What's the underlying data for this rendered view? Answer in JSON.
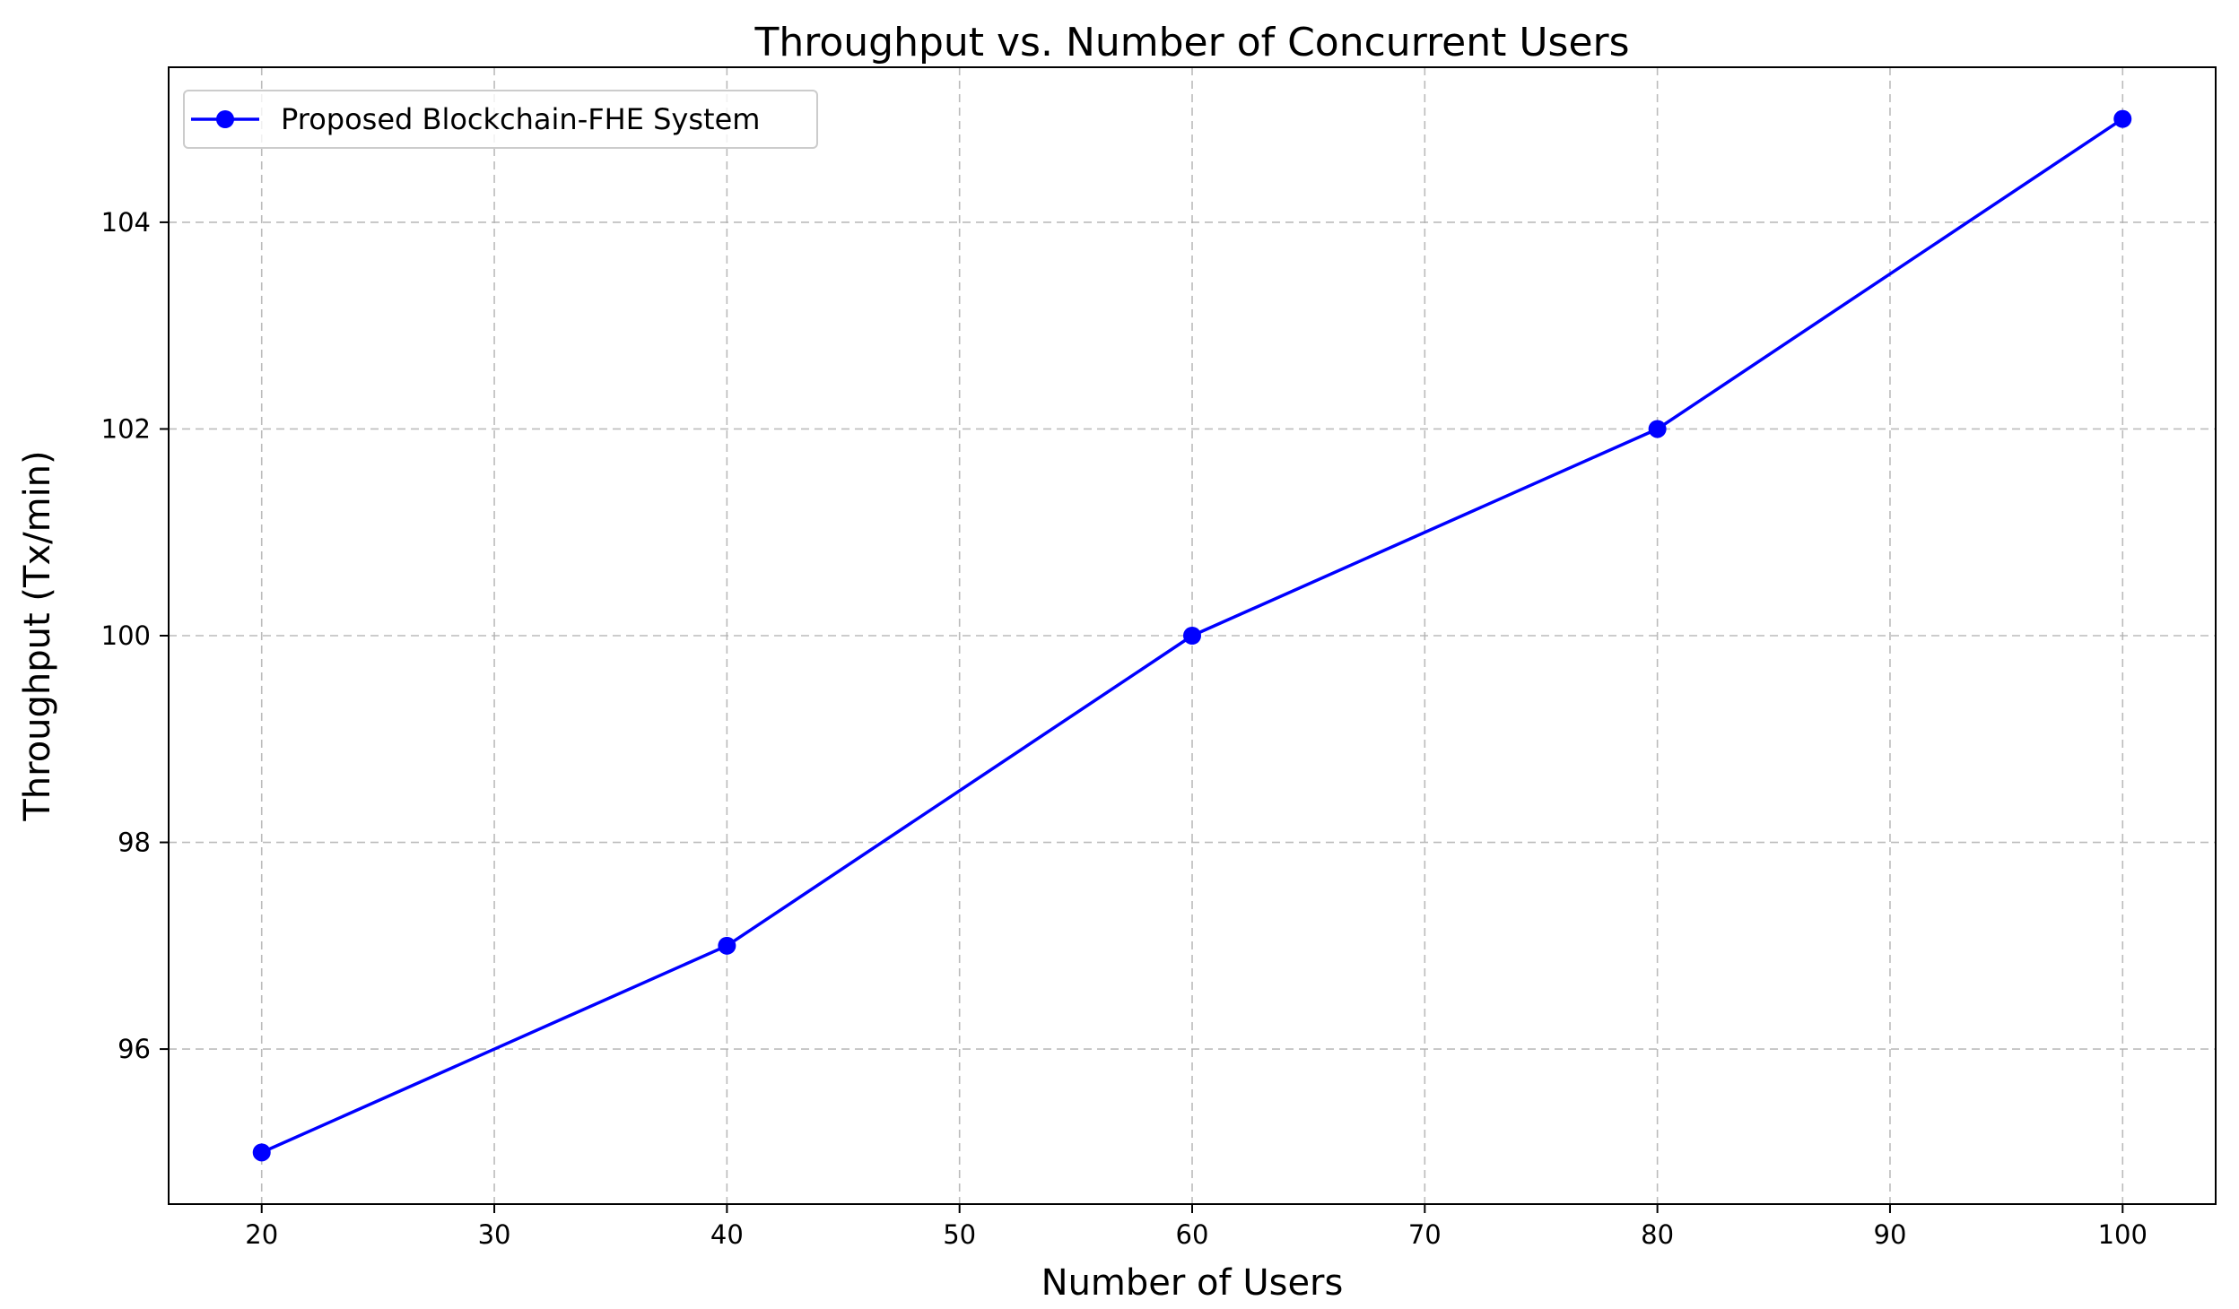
{
  "chart_data": {
    "type": "line",
    "title": "Throughput vs. Number of Concurrent Users",
    "xlabel": "Number of Users",
    "ylabel": "Throughput (Tx/min)",
    "x": [
      20,
      40,
      60,
      80,
      100
    ],
    "series": [
      {
        "name": "Proposed Blockchain-FHE System",
        "values": [
          95,
          97,
          100,
          102,
          105
        ],
        "color": "#0000ff",
        "marker": "circle"
      }
    ],
    "xlim": [
      16,
      104
    ],
    "ylim": [
      94.5,
      105.5
    ],
    "xticks": [
      20,
      30,
      40,
      50,
      60,
      70,
      80,
      90,
      100
    ],
    "yticks": [
      96,
      98,
      100,
      102,
      104
    ],
    "grid": true,
    "legend_position": "top-left"
  }
}
